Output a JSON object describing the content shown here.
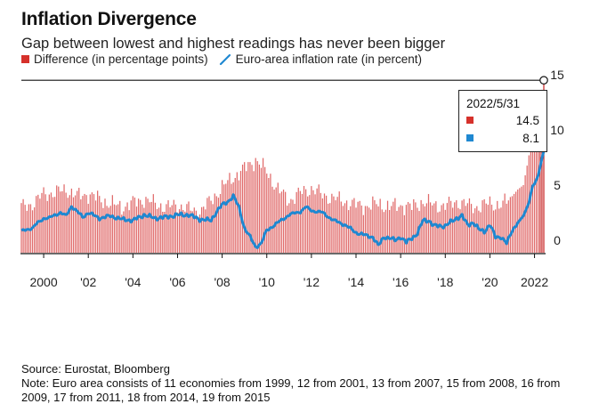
{
  "header": {
    "title": "Inflation Divergence",
    "subtitle": "Gap between lowest and highest readings has never been bigger"
  },
  "legend": {
    "bar_label": "Difference (in percentage points)",
    "line_label": "Euro-area inflation rate (in percent)"
  },
  "colors": {
    "bar": "#e06a6a",
    "bar_dark": "#c92a2a",
    "line": "#1f88d1",
    "swatch_red": "#d6312b"
  },
  "tooltip": {
    "date": "2022/5/31",
    "difference": "14.5",
    "inflation": "8.1"
  },
  "footer": {
    "source": "Source: Eurostat, Bloomberg",
    "note": "Note: Euro area consists of 11 economies from 1999, 12 from 2001, 13 from 2007, 15 from 2008, 16 from 2009, 17 from 2011, 18 from 2014, 19 from 2015"
  },
  "chart_data": {
    "type": "bar+line",
    "title": "Inflation Divergence",
    "subtitle": "Gap between lowest and highest readings has never been bigger",
    "x_range": [
      1999.0,
      2022.4167
    ],
    "y_range": [
      -1.2,
      15
    ],
    "y_ticks": [
      "0",
      "5",
      "10",
      "15"
    ],
    "y_tick_values": [
      0,
      5,
      10,
      15
    ],
    "x_ticks": [
      "2000",
      "'02",
      "'04",
      "'06",
      "'08",
      "'10",
      "'12",
      "'14",
      "'16",
      "'18",
      "'20",
      "2022"
    ],
    "x_tick_values": [
      2000,
      2002,
      2004,
      2006,
      2008,
      2010,
      2012,
      2014,
      2016,
      2018,
      2020,
      2022
    ],
    "series": [
      {
        "name": "Difference (in percentage points)",
        "kind": "bar",
        "knots_year": [
          1999.0,
          1999.5,
          2000.0,
          2000.5,
          2001.0,
          2001.5,
          2002.0,
          2002.5,
          2003.0,
          2003.5,
          2004.0,
          2004.5,
          2005.0,
          2005.5,
          2006.0,
          2006.5,
          2007.0,
          2007.5,
          2008.0,
          2008.5,
          2009.0,
          2009.5,
          2010.0,
          2010.5,
          2011.0,
          2011.5,
          2012.0,
          2012.5,
          2013.0,
          2013.5,
          2014.0,
          2014.5,
          2015.0,
          2015.5,
          2016.0,
          2016.5,
          2017.0,
          2017.5,
          2018.0,
          2018.5,
          2019.0,
          2019.5,
          2020.0,
          2020.5,
          2021.0,
          2021.25,
          2021.5,
          2021.67,
          2021.83,
          2022.0,
          2022.17,
          2022.33,
          2022.4167
        ],
        "knots_value": [
          3.0,
          3.3,
          4.2,
          4.3,
          4.6,
          4.0,
          4.2,
          3.7,
          3.3,
          3.0,
          3.4,
          3.7,
          3.3,
          3.0,
          3.2,
          2.8,
          2.6,
          3.6,
          4.8,
          5.7,
          6.5,
          7.3,
          6.2,
          4.6,
          3.6,
          4.3,
          4.7,
          4.1,
          3.8,
          3.5,
          3.2,
          3.1,
          3.3,
          3.0,
          3.2,
          3.0,
          3.5,
          3.2,
          3.1,
          3.5,
          3.2,
          3.0,
          3.4,
          3.1,
          4.0,
          4.6,
          5.0,
          6.8,
          8.6,
          10.4,
          12.2,
          13.6,
          14.5
        ]
      },
      {
        "name": "Euro-area inflation rate (in percent)",
        "kind": "line",
        "knots_year": [
          1999.0,
          1999.25,
          1999.5,
          1999.75,
          2000.0,
          2000.25,
          2000.5,
          2000.75,
          2001.0,
          2001.25,
          2001.5,
          2001.75,
          2002.0,
          2002.5,
          2003.0,
          2003.5,
          2004.0,
          2004.5,
          2005.0,
          2005.5,
          2006.0,
          2006.5,
          2007.0,
          2007.5,
          2007.75,
          2008.0,
          2008.25,
          2008.5,
          2008.75,
          2009.0,
          2009.25,
          2009.5,
          2009.75,
          2010.0,
          2010.5,
          2011.0,
          2011.5,
          2011.75,
          2012.0,
          2012.5,
          2013.0,
          2013.5,
          2014.0,
          2014.5,
          2014.75,
          2015.0,
          2015.25,
          2015.5,
          2015.75,
          2016.0,
          2016.25,
          2016.5,
          2016.75,
          2017.0,
          2017.25,
          2017.5,
          2018.0,
          2018.5,
          2018.75,
          2019.0,
          2019.25,
          2019.5,
          2019.75,
          2020.0,
          2020.25,
          2020.5,
          2020.75,
          2021.0,
          2021.25,
          2021.5,
          2021.75,
          2021.9,
          2022.0,
          2022.17,
          2022.33,
          2022.4167
        ],
        "knots_value": [
          0.8,
          1.0,
          1.1,
          1.6,
          2.0,
          2.0,
          2.3,
          2.5,
          2.2,
          3.1,
          2.6,
          2.1,
          2.5,
          2.0,
          2.2,
          1.9,
          1.8,
          2.3,
          2.0,
          2.1,
          2.3,
          2.3,
          1.9,
          1.8,
          2.6,
          3.2,
          3.5,
          4.0,
          3.0,
          1.1,
          0.3,
          -0.6,
          -0.3,
          0.9,
          1.6,
          2.3,
          2.6,
          3.0,
          2.7,
          2.5,
          1.8,
          1.4,
          0.7,
          0.4,
          0.3,
          -0.5,
          0.3,
          0.2,
          0.0,
          0.3,
          -0.2,
          0.2,
          0.6,
          1.8,
          1.8,
          1.3,
          1.3,
          2.0,
          2.2,
          1.4,
          1.6,
          1.0,
          0.8,
          1.4,
          0.3,
          0.3,
          -0.3,
          0.9,
          1.6,
          2.2,
          3.4,
          4.9,
          5.1,
          5.9,
          7.4,
          8.1
        ]
      }
    ],
    "highlight": {
      "date": "2022/5/31",
      "difference": 14.5,
      "inflation": 8.1,
      "reference_line_value": 14.5
    }
  }
}
